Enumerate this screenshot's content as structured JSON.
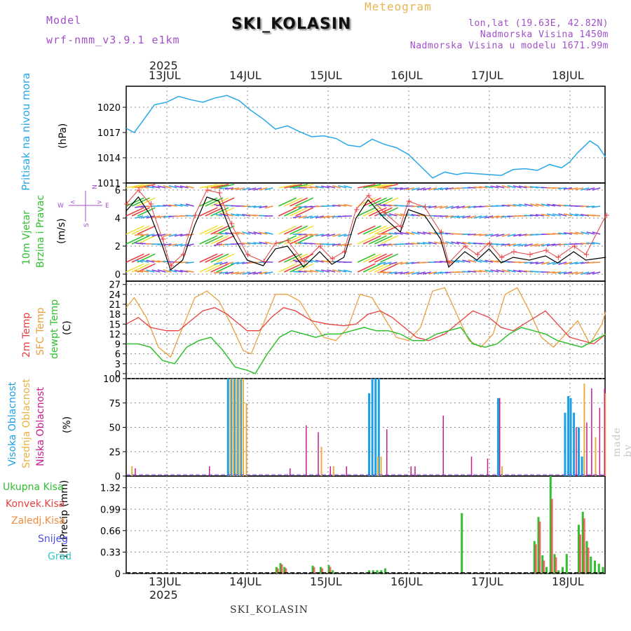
{
  "header": {
    "model_label": "Model",
    "model_name": "wrf-nmm_v3.9.1 e1km",
    "meteogram_label": "Meteogram",
    "station": "SKI_KOLASIN",
    "lonlat": "lon,lat (19.63E, 42.82N)",
    "altitude": "Nadmorska Visina 1450m",
    "model_altitude": "Nadmorska Visina u modelu 1671.99m",
    "year": "2025",
    "footer_station": "SKI_KOLASIN",
    "made_by": "made by Angel"
  },
  "dates": [
    "13JUL",
    "14JUL",
    "15JUL",
    "16JUL",
    "17JUL",
    "18JUL"
  ],
  "panels": {
    "pressure": {
      "label": "Pritisak na nivou mora",
      "unit": "(hPa)"
    },
    "wind": {
      "label1": "10m Vjetar",
      "label2": "Brzina i Pravac",
      "unit": "(m/s)",
      "rose": {
        "n": "N",
        "s": "S",
        "w": "W",
        "e": "E"
      }
    },
    "temp": {
      "l1": "2m Temp",
      "l2": "SFC Temp",
      "l3": "dewpt Temp",
      "unit": "(C)"
    },
    "cloud": {
      "l1": "Visoka Oblacnost",
      "l2": "Srednja Oblacnost",
      "l3": "Niska Oblacnost",
      "unit": "(%)"
    },
    "precip": {
      "ylabel": "1hr Precip (mm)",
      "legend": [
        "Ukupna Kisa",
        "Konvek.Kisa",
        "Zaledj.Kisa",
        "Snijeg",
        "Grad"
      ]
    }
  },
  "colors": {
    "pressure": "#28a8e8",
    "t2m": "#e84040",
    "sfc": "#e8a040",
    "dew": "#30c030",
    "cloud_high": "#1ea0e6",
    "cloud_mid": "#e8b040",
    "cloud_low": "#c81e8c",
    "rain": "#30c030",
    "conv": "#e84040",
    "frz": "#f08c3c",
    "snow": "#5050e0",
    "hail": "#30c8c8",
    "wind_speed": "#000000",
    "gust": "#e84040"
  },
  "chart_data": [
    {
      "type": "line",
      "x_unit": "days since 12 JUL 2025 12:00",
      "ylim": [
        1011,
        1022.5
      ],
      "yticks": [
        1011,
        1014,
        1017,
        1020
      ],
      "series": [
        {
          "name": "Pritisak na nivou mora",
          "x": [
            0,
            0.1,
            0.2,
            0.35,
            0.5,
            0.65,
            0.8,
            0.95,
            1.1,
            1.25,
            1.4,
            1.55,
            1.7,
            1.85,
            2.0,
            2.15,
            2.3,
            2.45,
            2.6,
            2.75,
            2.9,
            3.05,
            3.2,
            3.35,
            3.5,
            3.65,
            3.8,
            3.95,
            4.1,
            4.2,
            4.35,
            4.5,
            4.65,
            4.8,
            4.95,
            5.1,
            5.25,
            5.4,
            5.5,
            5.6,
            5.75,
            5.85,
            5.95
          ],
          "values": [
            1017.5,
            1017,
            1018.3,
            1020.3,
            1020.6,
            1021.3,
            1020.9,
            1020.6,
            1021.1,
            1021.4,
            1020.8,
            1019.6,
            1018.6,
            1017.4,
            1017.8,
            1017.1,
            1016.5,
            1016.6,
            1016.3,
            1015.5,
            1015.3,
            1016.2,
            1015.6,
            1015.2,
            1014.4,
            1013.0,
            1011.6,
            1012.3,
            1012.0,
            1012.2,
            1012.1,
            1012.0,
            1011.9,
            1012.6,
            1012.7,
            1012.5,
            1013.2,
            1012.8,
            1013.5,
            1014.6,
            1016.0,
            1015.4,
            1014.0
          ]
        }
      ]
    },
    {
      "type": "line",
      "x_unit": "days since 12 JUL 2025 12:00",
      "ylim": [
        -0.5,
        6.5
      ],
      "yticks": [
        0,
        2,
        4,
        6
      ],
      "series": [
        {
          "name": "speed",
          "x": [
            0,
            0.15,
            0.3,
            0.45,
            0.55,
            0.7,
            0.85,
            1.0,
            1.15,
            1.3,
            1.5,
            1.7,
            1.85,
            2.0,
            2.2,
            2.4,
            2.55,
            2.7,
            2.85,
            3.0,
            3.2,
            3.4,
            3.5,
            3.7,
            3.9,
            4.0,
            4.2,
            4.35,
            4.5,
            4.65,
            4.8,
            5.0,
            5.2,
            5.35,
            5.55,
            5.7,
            5.95
          ],
          "values": [
            4.5,
            5.5,
            4.2,
            2.0,
            0.3,
            1.0,
            3.5,
            5.5,
            5.2,
            3.0,
            1.0,
            0.6,
            1.8,
            2.0,
            0.5,
            1.6,
            0.7,
            1.2,
            4.0,
            5.3,
            4.0,
            3.0,
            4.6,
            4.2,
            2.5,
            0.5,
            1.6,
            1.0,
            1.8,
            0.8,
            1.2,
            1.0,
            1.3,
            0.8,
            1.6,
            1.0,
            1.2
          ]
        },
        {
          "name": "gust",
          "x": [
            0,
            0.15,
            0.3,
            0.45,
            0.55,
            0.7,
            0.85,
            1.0,
            1.15,
            1.3,
            1.5,
            1.7,
            1.85,
            2.0,
            2.2,
            2.4,
            2.55,
            2.7,
            2.85,
            3.0,
            3.2,
            3.4,
            3.5,
            3.7,
            3.9,
            4.0,
            4.2,
            4.35,
            4.5,
            4.65,
            4.8,
            5.0,
            5.2,
            5.35,
            5.55,
            5.7,
            5.95
          ],
          "values": [
            5.0,
            6.0,
            5.0,
            2.5,
            0.6,
            1.4,
            4.2,
            6.0,
            5.8,
            3.6,
            1.4,
            0.9,
            2.2,
            2.4,
            0.9,
            2.0,
            1.1,
            1.6,
            4.6,
            5.6,
            4.4,
            3.4,
            5.2,
            4.8,
            3.0,
            0.8,
            2.0,
            1.4,
            2.2,
            1.2,
            1.6,
            1.4,
            1.7,
            1.2,
            2.0,
            1.4,
            4.2
          ]
        }
      ]
    },
    {
      "type": "line",
      "x_unit": "days since 12 JUL 2025 12:00",
      "ylim": [
        -1.5,
        28
      ],
      "yticks": [
        0,
        3,
        6,
        9,
        12,
        15,
        18,
        21,
        24,
        27
      ],
      "series": [
        {
          "name": "2m Temp",
          "x": [
            0,
            0.15,
            0.3,
            0.5,
            0.65,
            0.8,
            0.95,
            1.1,
            1.25,
            1.4,
            1.5,
            1.65,
            1.8,
            1.95,
            2.1,
            2.3,
            2.5,
            2.7,
            2.85,
            3.0,
            3.15,
            3.3,
            3.45,
            3.6,
            3.75,
            3.95,
            4.15,
            4.3,
            4.5,
            4.65,
            4.8,
            5.0,
            5.2,
            5.35,
            5.5,
            5.65,
            5.8,
            5.95
          ],
          "values": [
            15,
            17,
            14,
            13,
            13,
            16,
            19,
            20,
            18,
            15,
            13,
            13,
            17,
            20,
            19,
            16,
            15,
            14.5,
            15,
            18,
            19,
            17,
            14,
            11,
            10,
            12,
            16,
            19,
            17,
            14,
            13,
            16,
            19,
            15,
            11,
            10,
            9,
            12
          ]
        },
        {
          "name": "SFC Temp",
          "x": [
            0,
            0.1,
            0.25,
            0.4,
            0.55,
            0.7,
            0.85,
            1.0,
            1.15,
            1.3,
            1.45,
            1.55,
            1.7,
            1.85,
            2.0,
            2.15,
            2.3,
            2.45,
            2.6,
            2.75,
            2.9,
            3.05,
            3.2,
            3.35,
            3.5,
            3.65,
            3.8,
            3.95,
            4.1,
            4.25,
            4.4,
            4.55,
            4.7,
            4.85,
            5.0,
            5.15,
            5.3,
            5.45,
            5.6,
            5.75,
            5.9,
            5.95
          ],
          "values": [
            20,
            23,
            17,
            8,
            5,
            14,
            23,
            25,
            22,
            15,
            7,
            6,
            15,
            24,
            24,
            22,
            16,
            11,
            10,
            14,
            24,
            23,
            17,
            11,
            10,
            14,
            25,
            26,
            18,
            10,
            8,
            12,
            24,
            26,
            19,
            11,
            8,
            12,
            16,
            9,
            15,
            19
          ]
        },
        {
          "name": "dewpt Temp",
          "x": [
            0,
            0.15,
            0.3,
            0.45,
            0.6,
            0.75,
            0.9,
            1.05,
            1.2,
            1.35,
            1.5,
            1.6,
            1.75,
            1.9,
            2.05,
            2.2,
            2.35,
            2.5,
            2.65,
            2.8,
            2.95,
            3.1,
            3.25,
            3.4,
            3.55,
            3.7,
            3.85,
            4.0,
            4.15,
            4.3,
            4.45,
            4.6,
            4.75,
            4.9,
            5.05,
            5.2,
            5.35,
            5.5,
            5.65,
            5.8,
            5.95
          ],
          "values": [
            9,
            9,
            8,
            4,
            3,
            8,
            10,
            11,
            7,
            2,
            1,
            0,
            6,
            11,
            13,
            12,
            11,
            12,
            12,
            13,
            14,
            13,
            13,
            12,
            10,
            10,
            12,
            13,
            14,
            9,
            8,
            9,
            12,
            14,
            13,
            12,
            10,
            9,
            8,
            10,
            12
          ]
        }
      ]
    },
    {
      "type": "bar",
      "x_unit": "days since 12 JUL 2025 12:00",
      "ylim": [
        0,
        100
      ],
      "yticks": [
        0,
        25,
        50,
        75,
        100
      ],
      "series": [
        {
          "name": "Visoka Oblacnost",
          "x": [
            1.25,
            1.29,
            1.33,
            1.37,
            1.41,
            3.0,
            3.04,
            3.08,
            3.12,
            4.6,
            5.43,
            5.47,
            5.5,
            5.54,
            5.6,
            5.64
          ],
          "values": [
            100,
            100,
            100,
            100,
            100,
            85,
            100,
            100,
            100,
            80,
            65,
            82,
            80,
            65,
            50,
            20
          ]
        },
        {
          "name": "Srednja Oblacnost",
          "x": [
            0.05,
            1.27,
            1.31,
            1.35,
            1.39,
            1.43,
            1.47,
            2.4,
            2.55,
            3.1,
            3.14,
            4.64,
            5.66,
            5.8,
            5.92,
            5.98,
            6.02
          ],
          "values": [
            10,
            100,
            100,
            100,
            100,
            100,
            75,
            30,
            10,
            20,
            20,
            10,
            95,
            40,
            85,
            35,
            60
          ]
        },
        {
          "name": "Niska Oblacnost",
          "x": [
            0.08,
            1.0,
            2.0,
            2.2,
            2.35,
            2.5,
            2.7,
            3.2,
            3.5,
            3.55,
            3.9,
            4.25,
            4.45,
            4.6,
            5.55,
            5.68,
            5.74,
            5.84,
            5.9,
            5.97,
            6.0
          ],
          "values": [
            8,
            10,
            8,
            52,
            45,
            10,
            10,
            48,
            10,
            10,
            62,
            20,
            18,
            80,
            50,
            55,
            90,
            70,
            90,
            90,
            92
          ]
        }
      ]
    },
    {
      "type": "bar",
      "x_unit": "days since 12 JUL 2025 12:00",
      "ylim": [
        0,
        1.5
      ],
      "yticks": [
        0,
        0.33,
        0.66,
        0.99,
        1.32
      ],
      "series": [
        {
          "name": "Ukupna Kisa",
          "x": [
            1.2,
            1.25,
            1.85,
            1.9,
            1.95,
            2.3,
            2.4,
            2.5,
            2.55,
            3.0,
            3.05,
            3.1,
            3.15,
            3.2,
            4.15,
            5.05,
            5.1,
            5.15,
            5.2,
            5.25,
            5.3,
            5.35,
            5.4,
            5.45,
            5.6,
            5.65,
            5.7,
            5.75,
            5.8,
            5.85,
            5.9,
            5.95
          ],
          "values": [
            0.02,
            0.02,
            0.1,
            0.16,
            0.1,
            0.12,
            0.1,
            0.13,
            0.05,
            0.05,
            0.05,
            0.05,
            0.05,
            0.08,
            0.93,
            0.5,
            0.87,
            0.28,
            0.1,
            1.5,
            0.3,
            0.05,
            0.1,
            0.3,
            0.75,
            0.95,
            0.5,
            0.26,
            0.2,
            0.15,
            0.1,
            0.2
          ]
        },
        {
          "name": "Konvek.Kisa",
          "x": [
            1.85,
            1.9,
            1.95,
            2.3,
            2.4,
            2.5,
            5.05,
            5.1,
            5.15,
            5.25,
            5.3,
            5.6,
            5.65,
            5.7
          ],
          "values": [
            0.08,
            0.14,
            0.08,
            0.1,
            0.08,
            0.1,
            0.45,
            0.8,
            0.2,
            1.15,
            0.25,
            0.6,
            0.85,
            0.4
          ]
        }
      ]
    }
  ]
}
